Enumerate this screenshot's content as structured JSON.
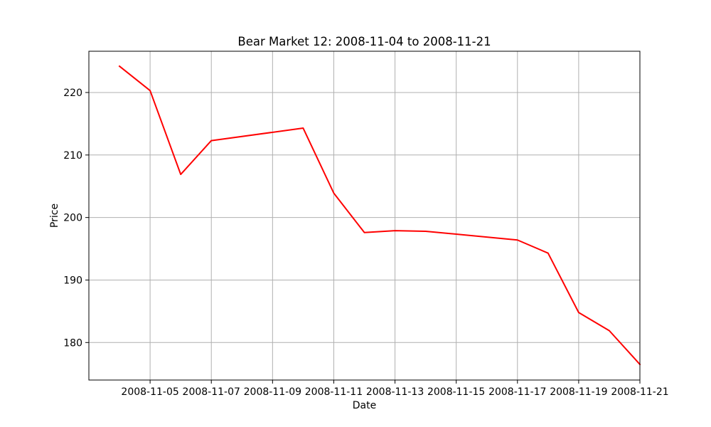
{
  "chart_data": {
    "type": "line",
    "title": "Bear Market 12: 2008-11-04 to 2008-11-21",
    "xlabel": "Date",
    "ylabel": "Price",
    "grid": true,
    "line_color": "#ff0000",
    "x_tick_labels": [
      "2008-11-05",
      "2008-11-07",
      "2008-11-09",
      "2008-11-11",
      "2008-11-13",
      "2008-11-15",
      "2008-11-17",
      "2008-11-19",
      "2008-11-21"
    ],
    "y_ticks": [
      180,
      190,
      200,
      210,
      220
    ],
    "y_tick_labels": [
      "180",
      "190",
      "200",
      "210",
      "220"
    ],
    "xlim": [
      "2008-11-03",
      "2008-11-21"
    ],
    "ylim": [
      174.0,
      226.6
    ],
    "series": [
      {
        "x": [
          "2008-11-04",
          "2008-11-05",
          "2008-11-06",
          "2008-11-07",
          "2008-11-10",
          "2008-11-11",
          "2008-11-12",
          "2008-11-13",
          "2008-11-14",
          "2008-11-17",
          "2008-11-18",
          "2008-11-19",
          "2008-11-20",
          "2008-11-21"
        ],
        "values": [
          224.2,
          220.3,
          206.9,
          212.3,
          214.3,
          203.9,
          197.6,
          197.9,
          197.8,
          196.4,
          194.3,
          184.8,
          181.9,
          176.5
        ]
      }
    ]
  }
}
